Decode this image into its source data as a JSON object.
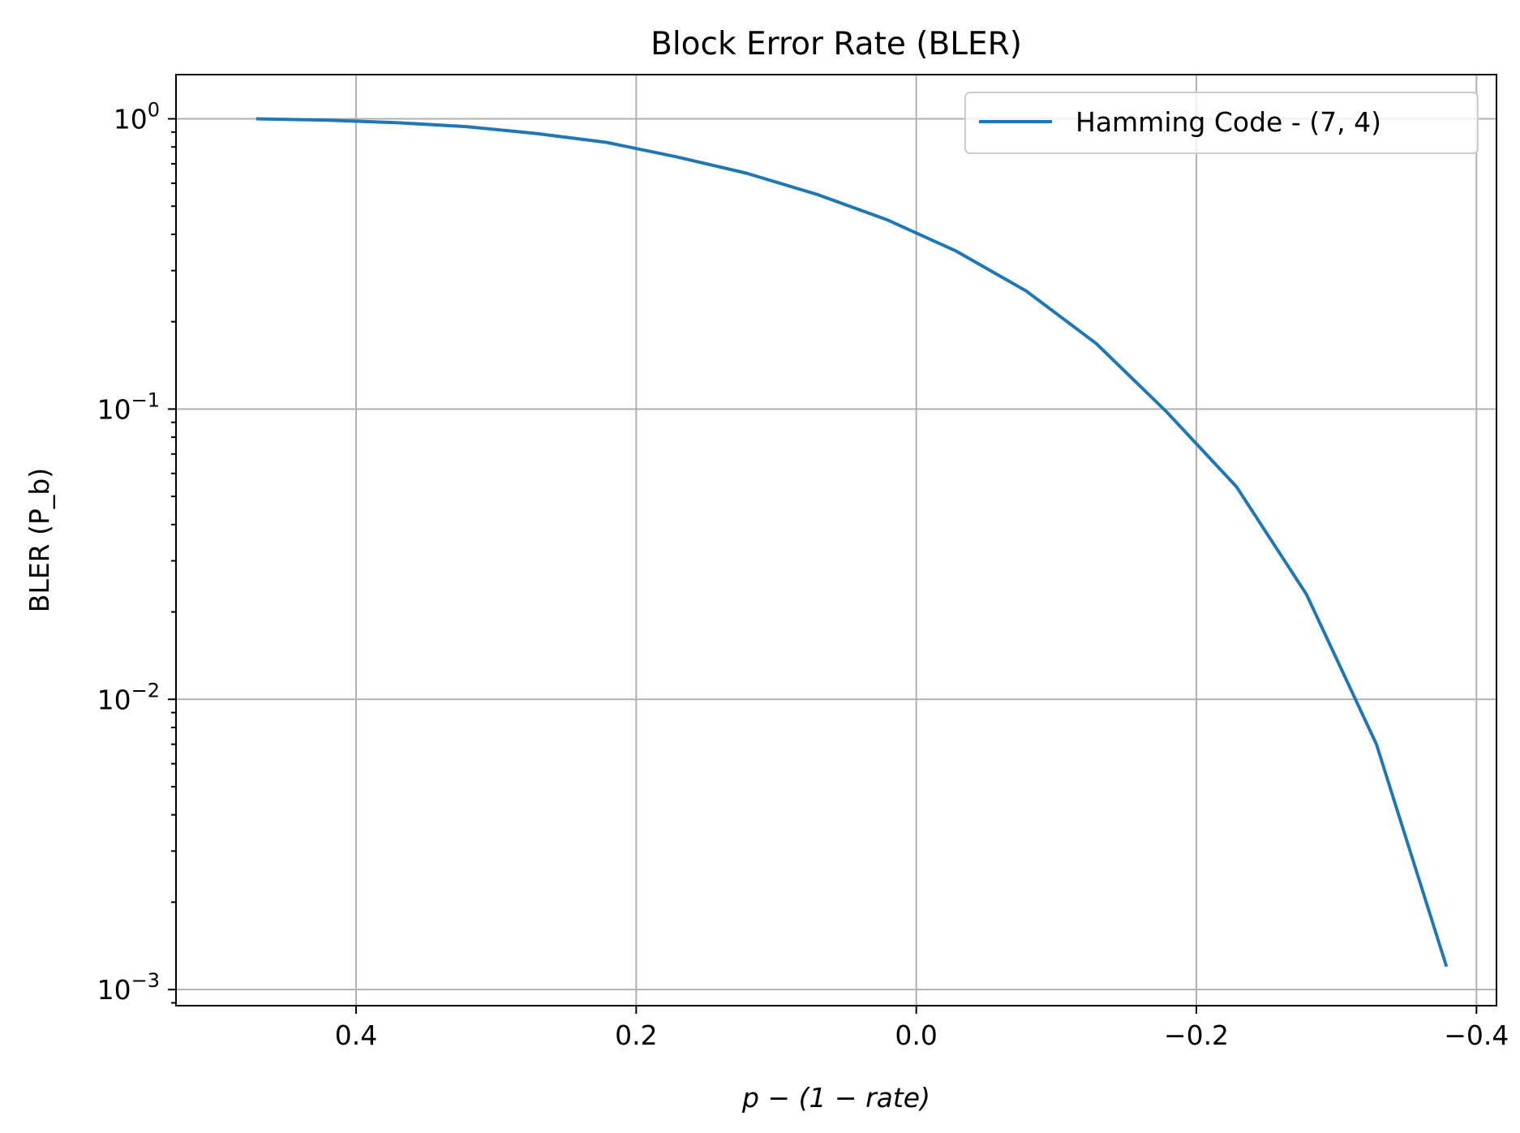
{
  "chart_data": {
    "type": "line",
    "title": "Block Error Rate (BLER)",
    "xlabel": "p − (1 − rate)",
    "ylabel": "BLER (P_b)",
    "xlim": [
      0.5286,
      -0.4143
    ],
    "ylim": [
      0.00088,
      1.42
    ],
    "x_inverted": true,
    "y_scale": "log",
    "grid": true,
    "legend_position": "top-right",
    "x_ticks": [
      0.4,
      0.2,
      0.0,
      -0.2,
      -0.4
    ],
    "x_tick_labels": [
      "0.4",
      "0.2",
      "0.0",
      "−0.2",
      "−0.4"
    ],
    "y_ticks": [
      1,
      0.1,
      0.01,
      0.001
    ],
    "y_tick_labels": [
      {
        "base": "10",
        "exp": "0"
      },
      {
        "base": "10",
        "exp": "−1"
      },
      {
        "base": "10",
        "exp": "−2"
      },
      {
        "base": "10",
        "exp": "−3"
      }
    ],
    "series": [
      {
        "name": "Hamming Code - (7, 4)",
        "color": "#1f77b4",
        "x": [
          0.4714,
          0.4214,
          0.3714,
          0.3214,
          0.2714,
          0.2214,
          0.1714,
          0.1214,
          0.0714,
          0.0214,
          -0.0286,
          -0.0786,
          -0.1286,
          -0.1786,
          -0.2286,
          -0.2786,
          -0.3286,
          -0.3786
        ],
        "y": [
          1.0,
          0.99,
          0.97,
          0.94,
          0.89,
          0.83,
          0.74,
          0.65,
          0.55,
          0.45,
          0.35,
          0.255,
          0.168,
          0.098,
          0.054,
          0.023,
          0.007,
          0.0012
        ]
      }
    ]
  }
}
